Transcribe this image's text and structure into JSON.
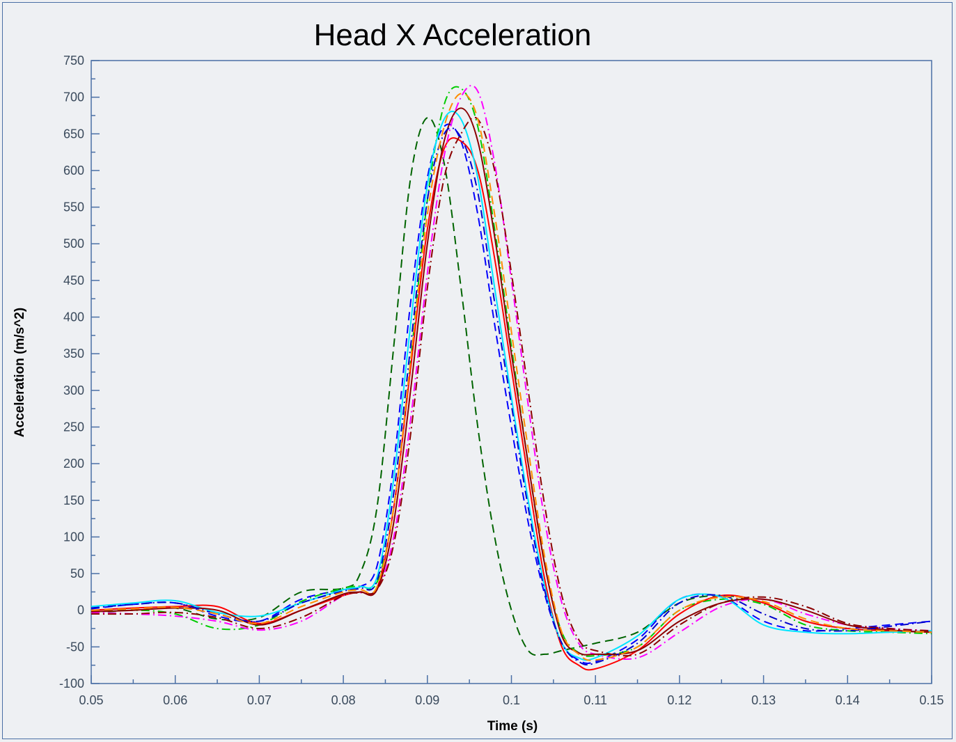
{
  "chart_data": {
    "type": "line",
    "title": "Head X Acceleration",
    "xlabel": "Time (s)",
    "ylabel": "Acceleration (m/s^2)",
    "xlim": [
      0.05,
      0.15
    ],
    "ylim": [
      -100,
      750
    ],
    "xticks": [
      0.05,
      0.06,
      0.07,
      0.08,
      0.09,
      0.1,
      0.11,
      0.12,
      0.13,
      0.14,
      0.15
    ],
    "xtick_labels": [
      "0.05",
      "0.06",
      "0.07",
      "0.08",
      "0.09",
      "0.1",
      "0.11",
      "0.12",
      "0.13",
      "0.14",
      "0.15"
    ],
    "yticks": [
      -100,
      -50,
      0,
      50,
      100,
      150,
      200,
      250,
      300,
      350,
      400,
      450,
      500,
      550,
      600,
      650,
      700,
      750
    ],
    "ytick_labels": [
      "-100",
      "-50",
      "0",
      "50",
      "100",
      "150",
      "200",
      "250",
      "300",
      "350",
      "400",
      "450",
      "500",
      "550",
      "600",
      "650",
      "700",
      "750"
    ],
    "grid": false,
    "legend": "none",
    "series": [
      {
        "color": "#006400",
        "style": "dashed",
        "x": [
          0.05,
          0.055,
          0.06,
          0.065,
          0.07,
          0.075,
          0.08,
          0.082,
          0.084,
          0.086,
          0.088,
          0.09,
          0.092,
          0.094,
          0.096,
          0.098,
          0.1,
          0.102,
          0.104,
          0.106,
          0.108,
          0.11,
          0.115,
          0.12,
          0.125,
          0.13,
          0.135,
          0.14,
          0.145,
          0.15
        ],
        "y": [
          -3,
          2,
          3,
          -12,
          -10,
          25,
          30,
          50,
          140,
          360,
          590,
          672,
          610,
          440,
          250,
          100,
          0,
          -55,
          -60,
          -55,
          -50,
          -45,
          -30,
          10,
          20,
          10,
          -15,
          -25,
          -28,
          -30
        ]
      },
      {
        "color": "#0000ff",
        "style": "dashed",
        "x": [
          0.05,
          0.055,
          0.06,
          0.065,
          0.07,
          0.075,
          0.08,
          0.082,
          0.084,
          0.086,
          0.088,
          0.09,
          0.092,
          0.094,
          0.096,
          0.098,
          0.1,
          0.102,
          0.104,
          0.106,
          0.108,
          0.11,
          0.115,
          0.12,
          0.125,
          0.13,
          0.135,
          0.14,
          0.145,
          0.15
        ],
        "y": [
          2,
          8,
          10,
          -8,
          -15,
          15,
          28,
          32,
          60,
          200,
          420,
          590,
          660,
          640,
          540,
          390,
          250,
          120,
          20,
          -45,
          -68,
          -70,
          -40,
          15,
          18,
          -15,
          -28,
          -25,
          -20,
          -15
        ]
      },
      {
        "color": "#00cc00",
        "style": "dashdot",
        "x": [
          0.05,
          0.055,
          0.06,
          0.065,
          0.07,
          0.075,
          0.08,
          0.082,
          0.084,
          0.086,
          0.088,
          0.09,
          0.092,
          0.094,
          0.096,
          0.098,
          0.1,
          0.102,
          0.104,
          0.106,
          0.108,
          0.11,
          0.115,
          0.12,
          0.125,
          0.13,
          0.135,
          0.14,
          0.145,
          0.15
        ],
        "y": [
          -5,
          0,
          -5,
          -25,
          -20,
          12,
          30,
          33,
          38,
          140,
          340,
          560,
          690,
          712,
          660,
          520,
          360,
          200,
          60,
          -30,
          -58,
          -62,
          -50,
          0,
          15,
          8,
          -20,
          -28,
          -30,
          -32
        ]
      },
      {
        "color": "#ff0000",
        "style": "solid",
        "x": [
          0.05,
          0.055,
          0.06,
          0.065,
          0.07,
          0.075,
          0.08,
          0.082,
          0.084,
          0.086,
          0.088,
          0.09,
          0.092,
          0.094,
          0.096,
          0.098,
          0.1,
          0.102,
          0.104,
          0.106,
          0.108,
          0.11,
          0.115,
          0.12,
          0.125,
          0.13,
          0.135,
          0.14,
          0.145,
          0.15
        ],
        "y": [
          0,
          3,
          5,
          5,
          -18,
          0,
          20,
          25,
          30,
          140,
          330,
          520,
          630,
          640,
          600,
          480,
          330,
          180,
          40,
          -50,
          -75,
          -80,
          -55,
          -5,
          20,
          10,
          -15,
          -25,
          -28,
          -30
        ]
      },
      {
        "color": "#ff00ff",
        "style": "dashdot",
        "x": [
          0.05,
          0.055,
          0.06,
          0.065,
          0.07,
          0.075,
          0.08,
          0.082,
          0.084,
          0.086,
          0.088,
          0.09,
          0.092,
          0.094,
          0.096,
          0.098,
          0.1,
          0.102,
          0.104,
          0.106,
          0.108,
          0.11,
          0.115,
          0.12,
          0.125,
          0.13,
          0.135,
          0.14,
          0.145,
          0.15
        ],
        "y": [
          -3,
          -5,
          -8,
          -15,
          -27,
          -15,
          20,
          24,
          28,
          100,
          260,
          460,
          620,
          700,
          708,
          610,
          450,
          280,
          120,
          10,
          -45,
          -60,
          -65,
          -30,
          5,
          15,
          -5,
          -20,
          -25,
          -28
        ]
      },
      {
        "color": "#00e5ff",
        "style": "solid",
        "x": [
          0.05,
          0.055,
          0.06,
          0.065,
          0.07,
          0.075,
          0.08,
          0.082,
          0.084,
          0.086,
          0.088,
          0.09,
          0.092,
          0.094,
          0.096,
          0.098,
          0.1,
          0.102,
          0.104,
          0.106,
          0.108,
          0.11,
          0.115,
          0.12,
          0.125,
          0.13,
          0.135,
          0.14,
          0.145,
          0.15
        ],
        "y": [
          5,
          10,
          13,
          -3,
          -8,
          10,
          28,
          32,
          45,
          180,
          390,
          580,
          670,
          670,
          590,
          440,
          290,
          150,
          30,
          -45,
          -65,
          -65,
          -35,
          15,
          18,
          -20,
          -30,
          -32,
          -30,
          -28
        ]
      },
      {
        "color": "#8b0000",
        "style": "dashdot",
        "x": [
          0.05,
          0.055,
          0.06,
          0.065,
          0.07,
          0.075,
          0.08,
          0.082,
          0.084,
          0.086,
          0.088,
          0.09,
          0.092,
          0.094,
          0.096,
          0.098,
          0.1,
          0.102,
          0.104,
          0.106,
          0.108,
          0.11,
          0.115,
          0.12,
          0.125,
          0.13,
          0.135,
          0.14,
          0.145,
          0.15
        ],
        "y": [
          -5,
          -5,
          -3,
          -10,
          -25,
          -10,
          20,
          24,
          28,
          90,
          240,
          440,
          590,
          650,
          670,
          600,
          460,
          300,
          140,
          20,
          -40,
          -55,
          -60,
          -20,
          10,
          18,
          5,
          -18,
          -25,
          -28
        ]
      },
      {
        "color": "#8b0000",
        "style": "solid",
        "x": [
          0.05,
          0.055,
          0.06,
          0.065,
          0.07,
          0.075,
          0.08,
          0.082,
          0.084,
          0.086,
          0.088,
          0.09,
          0.092,
          0.094,
          0.096,
          0.098,
          0.1,
          0.102,
          0.104,
          0.106,
          0.108,
          0.11,
          0.115,
          0.12,
          0.125,
          0.13,
          0.135,
          0.14,
          0.145,
          0.15
        ],
        "y": [
          -2,
          0,
          3,
          0,
          -20,
          0,
          22,
          25,
          28,
          120,
          300,
          500,
          640,
          685,
          640,
          510,
          350,
          200,
          60,
          -35,
          -58,
          -60,
          -55,
          -15,
          10,
          15,
          0,
          -20,
          -27,
          -30
        ]
      },
      {
        "color": "#0000cc",
        "style": "dashdot",
        "x": [
          0.05,
          0.055,
          0.06,
          0.065,
          0.07,
          0.075,
          0.08,
          0.082,
          0.084,
          0.086,
          0.088,
          0.09,
          0.092,
          0.094,
          0.096,
          0.098,
          0.1,
          0.102,
          0.104,
          0.106,
          0.108,
          0.11,
          0.115,
          0.12,
          0.125,
          0.13,
          0.135,
          0.14,
          0.145,
          0.15
        ],
        "y": [
          3,
          8,
          10,
          -5,
          -15,
          10,
          26,
          30,
          40,
          160,
          360,
          560,
          650,
          645,
          570,
          420,
          280,
          140,
          25,
          -45,
          -70,
          -72,
          -45,
          10,
          20,
          -5,
          -25,
          -28,
          -22,
          -15
        ]
      },
      {
        "color": "#ff8c00",
        "style": "dashed",
        "x": [
          0.05,
          0.055,
          0.06,
          0.065,
          0.07,
          0.075,
          0.08,
          0.082,
          0.084,
          0.086,
          0.088,
          0.09,
          0.092,
          0.094,
          0.096,
          0.098,
          0.1,
          0.102,
          0.104,
          0.106,
          0.108,
          0.11,
          0.115,
          0.12,
          0.125,
          0.13,
          0.135,
          0.14,
          0.145,
          0.15
        ],
        "y": [
          0,
          2,
          4,
          -5,
          -18,
          5,
          25,
          28,
          32,
          140,
          340,
          540,
          660,
          705,
          670,
          540,
          380,
          220,
          70,
          -30,
          -60,
          -68,
          -50,
          0,
          18,
          12,
          -12,
          -25,
          -28,
          -30
        ]
      }
    ]
  }
}
